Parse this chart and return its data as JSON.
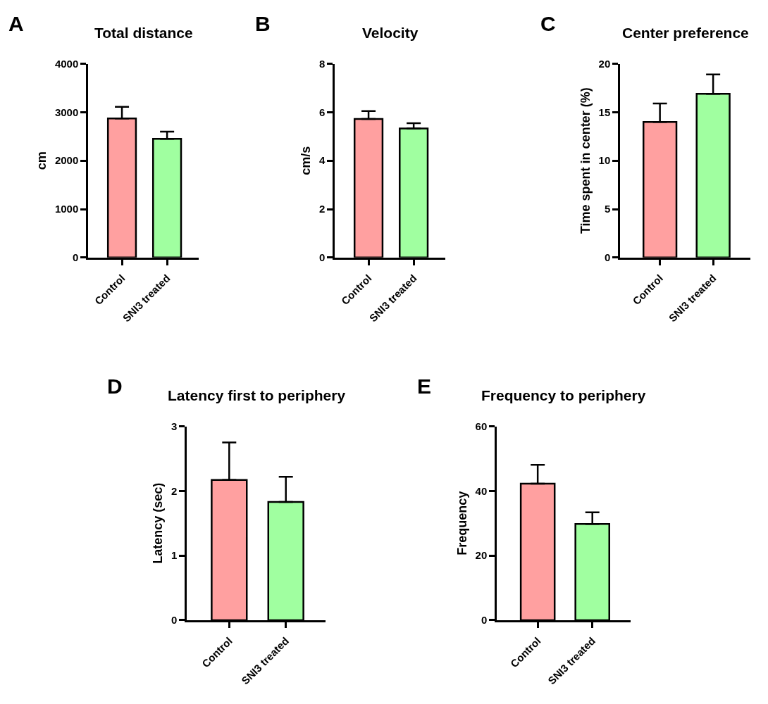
{
  "chart_data": [
    {
      "type": "bar",
      "title": "Total distance",
      "ylabel": "cm",
      "annotations": [
        "A"
      ],
      "categories": [
        "Control",
        "SNI3 treated"
      ],
      "values": [
        2870,
        2450
      ],
      "colors": [
        "#ffa0a0",
        "#a0ffa0"
      ],
      "errors": [
        [
          2870,
          3110
        ],
        [
          2450,
          2600
        ]
      ],
      "ylim": [
        0,
        4000
      ],
      "yticks": [
        0,
        1000,
        2000,
        3000,
        4000
      ]
    },
    {
      "type": "bar",
      "title": "Velocity",
      "ylabel": "cm/s",
      "annotations": [
        "B"
      ],
      "categories": [
        "Control",
        "SNI3 treated"
      ],
      "values": [
        5.72,
        5.33
      ],
      "colors": [
        "#ffa0a0",
        "#a0ffa0"
      ],
      "errors": [
        [
          5.72,
          6.05
        ],
        [
          5.33,
          5.55
        ]
      ],
      "ylim": [
        0,
        8
      ],
      "yticks": [
        0,
        2,
        4,
        6,
        8
      ]
    },
    {
      "type": "bar",
      "title": "Center preference",
      "ylabel": "Time spent in center (%)",
      "annotations": [
        "C"
      ],
      "categories": [
        "Control",
        "SNI3 treated"
      ],
      "values": [
        14.0,
        16.9
      ],
      "colors": [
        "#ffa0a0",
        "#a0ffa0"
      ],
      "errors": [
        [
          14.0,
          15.9
        ],
        [
          16.9,
          18.9
        ]
      ],
      "ylim": [
        0,
        20
      ],
      "yticks": [
        0,
        5,
        10,
        15,
        20
      ]
    },
    {
      "type": "bar",
      "title": "Latency first to periphery",
      "ylabel": "Latency (sec)",
      "annotations": [
        "D"
      ],
      "categories": [
        "Control",
        "SNI3 treated"
      ],
      "values": [
        2.17,
        1.83
      ],
      "colors": [
        "#ffa0a0",
        "#a0ffa0"
      ],
      "errors": [
        [
          2.17,
          2.75
        ],
        [
          1.83,
          2.22
        ]
      ],
      "ylim": [
        0,
        3
      ],
      "yticks": [
        0,
        1,
        2,
        3
      ]
    },
    {
      "type": "bar",
      "title": "Frequency to periphery",
      "ylabel": "Frequency",
      "annotations": [
        "E"
      ],
      "categories": [
        "Control",
        "SNI3 treated"
      ],
      "values": [
        42.3,
        29.8
      ],
      "colors": [
        "#ffa0a0",
        "#a0ffa0"
      ],
      "errors": [
        [
          42.3,
          48.1
        ],
        [
          29.8,
          33.4
        ]
      ],
      "ylim": [
        0,
        60
      ],
      "yticks": [
        0,
        20,
        40,
        60
      ]
    }
  ]
}
